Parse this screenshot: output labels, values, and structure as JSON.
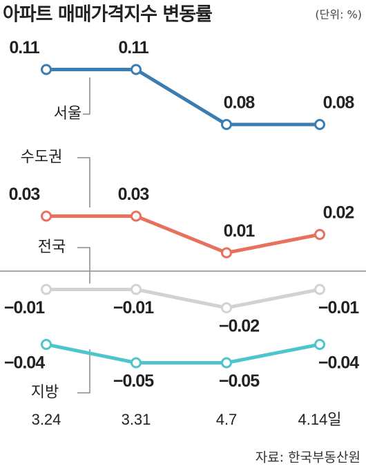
{
  "chart_data": {
    "type": "line",
    "title": "아파트 매매가격지수 변동률",
    "unit": "(단위: %)",
    "source": "자료: 한국부동산원",
    "categories": [
      "3.24",
      "3.31",
      "4.7",
      "4.14일"
    ],
    "ylim": [
      -0.06,
      0.12
    ],
    "series": [
      {
        "name": "서울",
        "color": "#3b7db0",
        "values": [
          0.11,
          0.11,
          0.08,
          0.08
        ]
      },
      {
        "name": "수도권",
        "color": "#e8705f",
        "values": [
          0.03,
          0.03,
          0.01,
          0.02
        ]
      },
      {
        "name": "전국",
        "color": "#d2d2d2",
        "values": [
          -0.01,
          -0.01,
          -0.02,
          -0.01
        ],
        "value_labels": [
          "−0.01",
          "−0.01",
          "−0.02",
          "−0.01"
        ]
      },
      {
        "name": "지방",
        "color": "#4ec4cb",
        "values": [
          -0.04,
          -0.05,
          -0.05,
          -0.04
        ],
        "value_labels": [
          "−0.04",
          "−0.05",
          "−0.05",
          "−0.04"
        ]
      }
    ]
  }
}
